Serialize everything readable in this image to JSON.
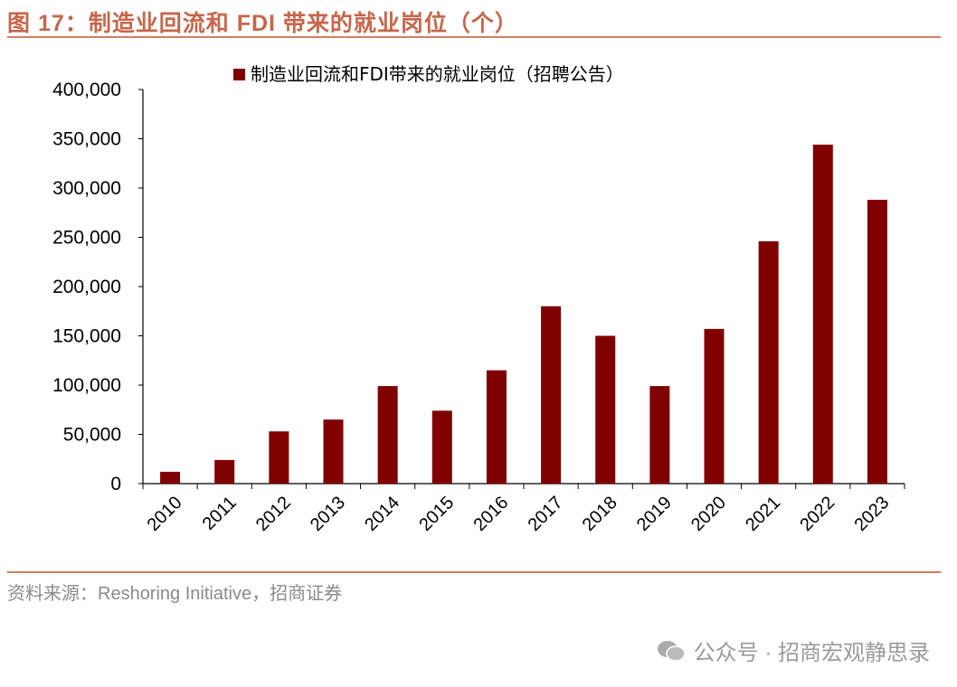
{
  "header": {
    "title": "图 17：制造业回流和 FDI 带来的就业岗位（个）"
  },
  "footer": {
    "source": "资料来源：Reshoring Initiative，招商证券",
    "watermark": "公众号 · 招商宏观静思录",
    "watermark_icon": "wechat-icon"
  },
  "colors": {
    "bar": "#800000",
    "title": "#C8654A"
  },
  "chart_data": {
    "type": "bar",
    "categories": [
      "2010",
      "2011",
      "2012",
      "2013",
      "2014",
      "2015",
      "2016",
      "2017",
      "2018",
      "2019",
      "2020",
      "2021",
      "2022",
      "2023"
    ],
    "series": [
      {
        "name": "制造业回流和FDI带来的就业岗位（招聘公告）",
        "values": [
          12000,
          24000,
          53000,
          65000,
          99000,
          74000,
          115000,
          180000,
          150000,
          99000,
          157000,
          246000,
          344000,
          288000
        ]
      }
    ],
    "yticks": [
      "0",
      "50,000",
      "100,000",
      "150,000",
      "200,000",
      "250,000",
      "300,000",
      "350,000",
      "400,000"
    ],
    "ylim": [
      0,
      400000
    ],
    "legend": "top",
    "grid": false
  }
}
